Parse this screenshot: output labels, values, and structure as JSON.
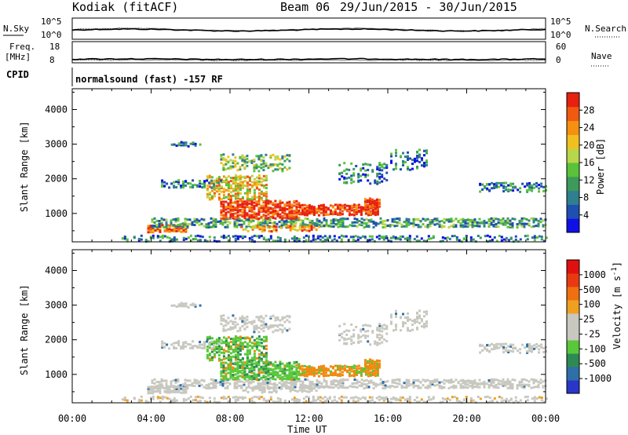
{
  "header": {
    "station": "Kodiak (fitACF)",
    "beam": "Beam 06",
    "dates": "29/Jun/2015 - 30/Jun/2015"
  },
  "info_panels": {
    "nsky_label": "N.Sky",
    "nsky_ticks": [
      "10^5",
      "10^0"
    ],
    "nsearch_label": "N.Search",
    "nsearch_ticks": [
      "10^5",
      "10^0"
    ],
    "freq_label_1": "Freq.",
    "freq_label_2": "[MHz]",
    "freq_ticks": [
      "18",
      "8"
    ],
    "nave_label": "Nave",
    "nave_ticks": [
      "60",
      "0"
    ],
    "cpid_label": "CPID",
    "cpid_text": "normalsound (fast) -157 RF"
  },
  "chart_data": [
    {
      "type": "heatmap",
      "name": "power-panel",
      "ylabel": "Slant Range [km]",
      "ylim": [
        180,
        4600
      ],
      "yticks": [
        1000,
        2000,
        3000,
        4000
      ],
      "xlim": [
        0,
        24
      ],
      "colorbar": {
        "label": "Power [dB]",
        "ticks": [
          "4",
          "8",
          "12",
          "16",
          "20",
          "24",
          "28"
        ],
        "colors": [
          "#1010e6",
          "#1f4fb0",
          "#2f7f8f",
          "#3d9a5a",
          "#59c23a",
          "#b8d64a",
          "#f0c020",
          "#f59010",
          "#f05a10",
          "#e82010"
        ]
      }
    },
    {
      "type": "heatmap",
      "name": "velocity-panel",
      "ylabel": "Slant Range [km]",
      "ylim": [
        180,
        4600
      ],
      "yticks": [
        1000,
        2000,
        3000,
        4000
      ],
      "xlim": [
        0,
        24
      ],
      "xticks": [
        "00:00",
        "04:00",
        "08:00",
        "12:00",
        "16:00",
        "20:00",
        "00:00"
      ],
      "xlabel": "Time UT",
      "colorbar": {
        "label": "Velocity [m s",
        "label_sup": "-1",
        "label_end": "]",
        "ticks": [
          "1000",
          "500",
          "100",
          "25",
          "-25",
          "-100",
          "-500",
          "-1000"
        ],
        "colors": [
          "#2a36c8",
          "#2f6fa8",
          "#2d8a55",
          "#58c83a",
          "#c8c8c0",
          "#c8c8c0",
          "#f0a020",
          "#f07010",
          "#e83a10",
          "#e01010"
        ]
      }
    }
  ]
}
